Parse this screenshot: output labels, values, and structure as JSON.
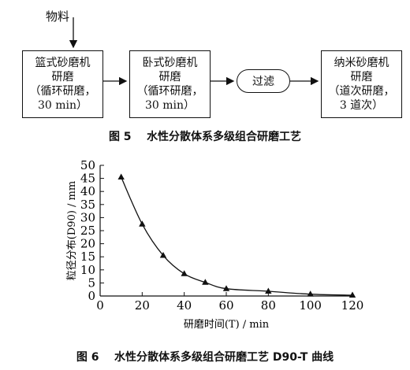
{
  "figure5": {
    "input_label": "物料",
    "steps": [
      {
        "line1": "篮式砂磨机",
        "line2": "研磨",
        "line3": "（循环研磨，",
        "line4": "30 min）"
      },
      {
        "line1": "卧式砂磨机",
        "line2": "研磨",
        "line3": "（循环研磨，",
        "line4": "30 min）"
      },
      {
        "line1": "过滤"
      },
      {
        "line1": "纳米砂磨机",
        "line2": "研磨",
        "line3": "（道次研磨，",
        "line4": "3 道次）"
      }
    ],
    "caption_number": "图 5",
    "caption_text": "水性分散体系多级组合研磨工艺"
  },
  "figure6": {
    "caption_number": "图 6",
    "caption_text": "水性分散体系多级组合研磨工艺 D90-T 曲线"
  },
  "chart_data": {
    "type": "line",
    "xlabel": "研磨时间(T) / min",
    "ylabel": "粒径分布(D90) / mm",
    "x_ticks": [
      0,
      20,
      40,
      60,
      80,
      100,
      120
    ],
    "y_ticks": [
      0,
      5,
      10,
      15,
      20,
      25,
      30,
      35,
      40,
      45,
      50
    ],
    "xlim": [
      0,
      120
    ],
    "ylim": [
      0,
      50
    ],
    "x": [
      10,
      20,
      30,
      40,
      50,
      60,
      80,
      100,
      120
    ],
    "y": [
      45.5,
      27.5,
      15.5,
      8.5,
      5.2,
      2.8,
      1.8,
      0.7,
      0.3
    ],
    "marker": "triangle",
    "grid": false
  }
}
